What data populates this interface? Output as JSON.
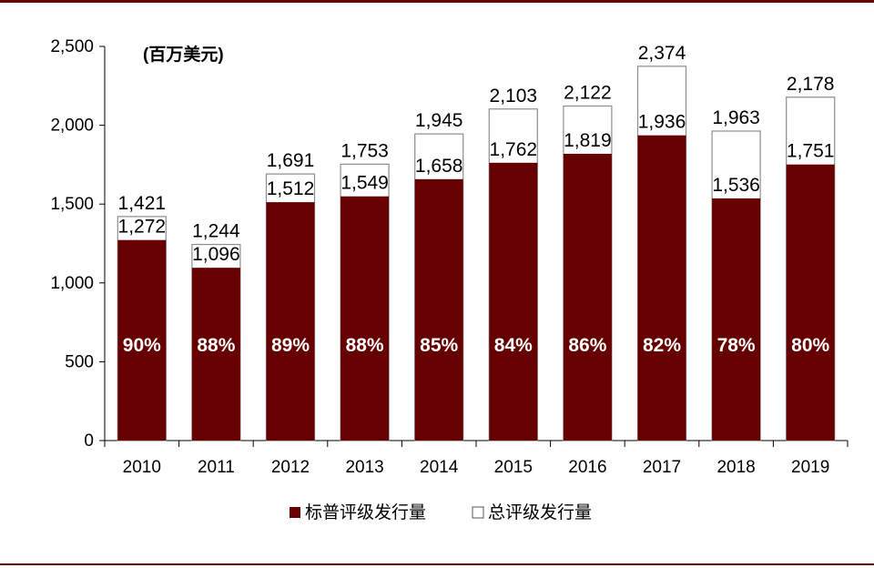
{
  "chart_data": {
    "type": "bar",
    "unit_label": "(百万美元)",
    "categories": [
      "2010",
      "2011",
      "2012",
      "2013",
      "2014",
      "2015",
      "2016",
      "2017",
      "2018",
      "2019"
    ],
    "series": [
      {
        "name": "标普评级发行量",
        "values": [
          1272,
          1096,
          1512,
          1549,
          1658,
          1762,
          1819,
          1936,
          1536,
          1751
        ],
        "color": "#660000"
      },
      {
        "name": "总评级发行量",
        "values": [
          1421,
          1244,
          1691,
          1753,
          1945,
          2103,
          2122,
          2374,
          1963,
          2178
        ],
        "color": "#ffffff"
      }
    ],
    "series_labels": {
      "sp": [
        "1,272",
        "1,096",
        "1,512",
        "1,549",
        "1,658",
        "1,762",
        "1,819",
        "1,936",
        "1,536",
        "1,751"
      ],
      "total": [
        "1,421",
        "1,244",
        "1,691",
        "1,753",
        "1,945",
        "2,103",
        "2,122",
        "2,374",
        "1,963",
        "2,178"
      ]
    },
    "percentages": [
      "90%",
      "88%",
      "89%",
      "88%",
      "85%",
      "84%",
      "86%",
      "82%",
      "78%",
      "80%"
    ],
    "ylim": [
      0,
      2500
    ],
    "yticks": [
      0,
      500,
      1000,
      1500,
      2000,
      2500
    ],
    "ytick_labels": [
      "0",
      "500",
      "1,000",
      "1,500",
      "2,000",
      "2,500"
    ],
    "legend_position": "bottom",
    "grid": false
  }
}
